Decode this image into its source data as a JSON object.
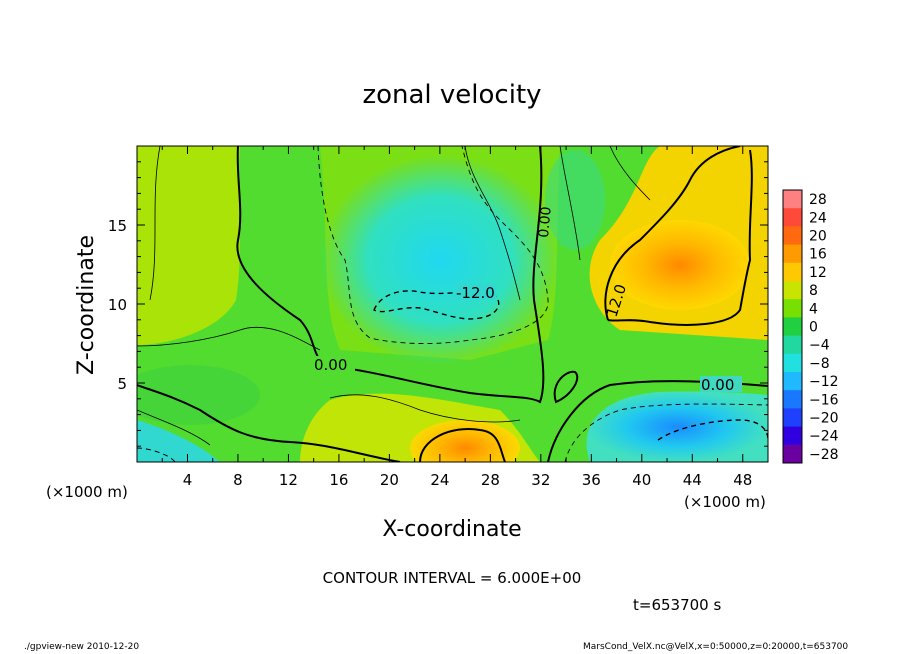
{
  "chart_data": {
    "type": "heatmap",
    "title": "zonal velocity",
    "xlabel": "X-coordinate",
    "ylabel": "Z-coordinate",
    "x_unit": "(×1000 m)",
    "x_unit_right": "(×1000 m)",
    "xlim": [
      0,
      50
    ],
    "ylim": [
      0,
      20
    ],
    "x_ticks": [
      4,
      8,
      12,
      16,
      20,
      24,
      28,
      32,
      36,
      40,
      44,
      48
    ],
    "y_ticks": [
      5,
      10,
      15
    ],
    "x_tick_labels": [
      "4",
      "8",
      "12",
      "16",
      "20",
      "24",
      "28",
      "32",
      "36",
      "40",
      "44",
      "48"
    ],
    "y_tick_labels": [
      "5",
      "10",
      "15"
    ],
    "colorbar": {
      "levels": [
        28,
        24,
        20,
        16,
        12,
        8,
        4,
        0,
        -4,
        -8,
        -12,
        -16,
        -20,
        -24,
        -28
      ],
      "labels": [
        "28",
        "24",
        "20",
        "16",
        "12",
        "8",
        "4",
        "0",
        "−4",
        "−8",
        "−12",
        "−16",
        "−20",
        "−24",
        "−28"
      ],
      "colors": [
        "#ff8080",
        "#ff4a3a",
        "#ff6a10",
        "#ff9a00",
        "#ffc800",
        "#c8e400",
        "#78e000",
        "#20d040",
        "#20d8a0",
        "#20e0e0",
        "#20b8ff",
        "#1a78ff",
        "#2040ff",
        "#3000e0",
        "#6a00a0"
      ]
    },
    "contour_labels": [
      "0.00",
      "0.00",
      "0.00",
      "-12.0",
      "12.0"
    ],
    "grid": false,
    "legend": "colorbar at right"
  },
  "annotations": {
    "contour_interval": "CONTOUR INTERVAL = 6.000E+00",
    "time": "t=653700 s",
    "footer_left": "./gpview-new  2010-12-20",
    "footer_right": "MarsCond_VelX.nc@VelX,x=0:50000,z=0:20000,t=653700"
  }
}
